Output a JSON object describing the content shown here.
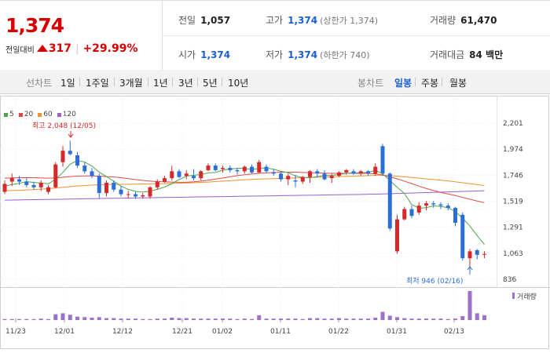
{
  "summary": {
    "current_price": "1,374",
    "diff_label": "전일대비",
    "diff_value": "317",
    "diff_rate": "+29.99%",
    "prev_close": {
      "label": "전일",
      "value": "1,057"
    },
    "high": {
      "label": "고가",
      "value": "1,374",
      "note": "(상한가 1,374)"
    },
    "volume": {
      "label": "거래량",
      "value": "61,470"
    },
    "open": {
      "label": "시가",
      "value": "1,374"
    },
    "low": {
      "label": "저가",
      "value": "1,374",
      "note": "(하한가 740)"
    },
    "amount": {
      "label": "거래대금",
      "value": "84 백만"
    }
  },
  "toolbar": {
    "line_label": "선차트",
    "periods": [
      "1일",
      "1주일",
      "3개월",
      "1년",
      "3년",
      "5년",
      "10년"
    ],
    "candle_label": "봉차트",
    "candle_types": [
      "일봉",
      "주봉",
      "월봉"
    ],
    "active_candle": "일봉"
  },
  "colors": {
    "up": "#d8272a",
    "down": "#2b6fd6",
    "ma5": "#4aa84a",
    "ma20": "#e04848",
    "ma60": "#f0922b",
    "ma120": "#9b5fd0",
    "volume": "#9b72c8",
    "accent_blue": "#1a5fd4"
  },
  "chart_data": {
    "type": "candlestick",
    "legend": [
      "5",
      "20",
      "60",
      "120"
    ],
    "y_ticks": [
      "2,201",
      "1,974",
      "1,746",
      "1,519",
      "1,291",
      "1,063",
      "836"
    ],
    "ylim": [
      836,
      2201
    ],
    "x_ticks": [
      "11/23",
      "12/01",
      "12/12",
      "12/21",
      "01/02",
      "01/11",
      "01/22",
      "01/31",
      "02/13"
    ],
    "max_annotation": "최고 2,048 (12/05)",
    "min_annotation": "최저 946 (02/16)",
    "volume_label": "거래량",
    "candles": [
      [
        1600,
        1700,
        1580,
        1670
      ],
      [
        1690,
        1760,
        1650,
        1720
      ],
      [
        1710,
        1740,
        1660,
        1690
      ],
      [
        1690,
        1720,
        1640,
        1660
      ],
      [
        1660,
        1690,
        1620,
        1640
      ],
      [
        1640,
        1700,
        1610,
        1680
      ],
      [
        1600,
        1660,
        1580,
        1640
      ],
      [
        1640,
        1860,
        1630,
        1840
      ],
      [
        1860,
        2000,
        1820,
        1960
      ],
      [
        1960,
        2048,
        1920,
        1930
      ],
      [
        1920,
        1950,
        1810,
        1830
      ],
      [
        1830,
        1860,
        1760,
        1780
      ],
      [
        1780,
        1810,
        1720,
        1740
      ],
      [
        1740,
        1760,
        1540,
        1590
      ],
      [
        1590,
        1700,
        1560,
        1680
      ],
      [
        1680,
        1700,
        1600,
        1620
      ],
      [
        1620,
        1650,
        1560,
        1580
      ],
      [
        1580,
        1610,
        1550,
        1580
      ],
      [
        1580,
        1600,
        1540,
        1560
      ],
      [
        1560,
        1590,
        1540,
        1570
      ],
      [
        1560,
        1650,
        1540,
        1640
      ],
      [
        1640,
        1710,
        1620,
        1690
      ],
      [
        1690,
        1740,
        1680,
        1720
      ],
      [
        1720,
        1830,
        1700,
        1780
      ],
      [
        1780,
        1800,
        1720,
        1730
      ],
      [
        1740,
        1790,
        1710,
        1760
      ],
      [
        1740,
        1800,
        1700,
        1720
      ],
      [
        1720,
        1790,
        1700,
        1780
      ],
      [
        1790,
        1850,
        1780,
        1830
      ],
      [
        1830,
        1850,
        1780,
        1790
      ],
      [
        1800,
        1830,
        1770,
        1810
      ],
      [
        1810,
        1830,
        1770,
        1790
      ],
      [
        1790,
        1810,
        1750,
        1780
      ],
      [
        1780,
        1830,
        1760,
        1820
      ],
      [
        1820,
        1840,
        1760,
        1770
      ],
      [
        1770,
        1880,
        1760,
        1860
      ],
      [
        1820,
        1840,
        1770,
        1780
      ],
      [
        1770,
        1800,
        1740,
        1760
      ],
      [
        1760,
        1780,
        1690,
        1710
      ],
      [
        1710,
        1760,
        1660,
        1740
      ],
      [
        1700,
        1750,
        1640,
        1690
      ],
      [
        1690,
        1740,
        1670,
        1730
      ],
      [
        1730,
        1790,
        1680,
        1780
      ],
      [
        1780,
        1800,
        1730,
        1760
      ],
      [
        1760,
        1790,
        1700,
        1710
      ],
      [
        1720,
        1760,
        1680,
        1740
      ],
      [
        1740,
        1780,
        1730,
        1770
      ],
      [
        1770,
        1800,
        1750,
        1790
      ],
      [
        1780,
        1800,
        1750,
        1760
      ],
      [
        1760,
        1790,
        1740,
        1780
      ],
      [
        1780,
        1790,
        1740,
        1760
      ],
      [
        1760,
        1850,
        1740,
        1820
      ],
      [
        2000,
        2020,
        1740,
        1760
      ],
      [
        1760,
        1770,
        1260,
        1280
      ],
      [
        1080,
        1400,
        1060,
        1360
      ],
      [
        1360,
        1470,
        1350,
        1450
      ],
      [
        1450,
        1480,
        1370,
        1390
      ],
      [
        1420,
        1510,
        1400,
        1480
      ],
      [
        1480,
        1520,
        1440,
        1500
      ],
      [
        1500,
        1520,
        1460,
        1490
      ],
      [
        1490,
        1510,
        1450,
        1480
      ],
      [
        1480,
        1500,
        1440,
        1460
      ],
      [
        1460,
        1470,
        1300,
        1330
      ],
      [
        1400,
        1420,
        1000,
        1020
      ],
      [
        1020,
        1100,
        946,
        1080
      ],
      [
        1090,
        1100,
        1010,
        1050
      ],
      [
        1050,
        1080,
        1020,
        1057
      ]
    ],
    "ma5": [
      1650,
      1665,
      1675,
      1690,
      1682,
      1678,
      1670,
      1710,
      1770,
      1842,
      1874,
      1862,
      1826,
      1772,
      1734,
      1694,
      1650,
      1622,
      1604,
      1598,
      1606,
      1622,
      1642,
      1672,
      1708,
      1738,
      1746,
      1752,
      1766,
      1770,
      1790,
      1800,
      1806,
      1806,
      1796,
      1806,
      1810,
      1798,
      1780,
      1768,
      1740,
      1726,
      1724,
      1734,
      1744,
      1744,
      1752,
      1762,
      1766,
      1768,
      1770,
      1788,
      1758,
      1700,
      1640,
      1586,
      1488,
      1458,
      1462,
      1478,
      1472,
      1462,
      1428,
      1370,
      1302,
      1218,
      1140
    ],
    "ma20": [
      1720,
      1722,
      1724,
      1725,
      1724,
      1722,
      1720,
      1722,
      1728,
      1734,
      1738,
      1740,
      1740,
      1738,
      1734,
      1730,
      1724,
      1716,
      1708,
      1700,
      1694,
      1690,
      1688,
      1686,
      1684,
      1684,
      1688,
      1694,
      1702,
      1712,
      1722,
      1732,
      1742,
      1750,
      1756,
      1762,
      1766,
      1770,
      1772,
      1772,
      1772,
      1770,
      1768,
      1766,
      1764,
      1762,
      1762,
      1762,
      1762,
      1762,
      1762,
      1758,
      1748,
      1732,
      1714,
      1694,
      1672,
      1650,
      1630,
      1612,
      1596,
      1582,
      1568,
      1552,
      1536,
      1520,
      1506
    ],
    "ma60": [
      1610,
      1612,
      1614,
      1617,
      1620,
      1624,
      1628,
      1634,
      1640,
      1646,
      1652,
      1656,
      1660,
      1662,
      1664,
      1665,
      1666,
      1667,
      1668,
      1669,
      1670,
      1671,
      1672,
      1674,
      1676,
      1678,
      1680,
      1683,
      1686,
      1690,
      1694,
      1698,
      1702,
      1706,
      1709,
      1712,
      1714,
      1716,
      1718,
      1720,
      1722,
      1724,
      1726,
      1728,
      1730,
      1732,
      1734,
      1736,
      1738,
      1740,
      1742,
      1744,
      1744,
      1742,
      1738,
      1732,
      1726,
      1720,
      1714,
      1708,
      1702,
      1696,
      1688,
      1680,
      1672,
      1664,
      1656
    ],
    "ma120": [
      1528,
      1529,
      1530,
      1531,
      1532,
      1533,
      1534,
      1535,
      1536,
      1537,
      1538,
      1540,
      1541,
      1542,
      1543,
      1544,
      1545,
      1546,
      1547,
      1548,
      1549,
      1550,
      1551,
      1552,
      1553,
      1554,
      1555,
      1556,
      1557,
      1558,
      1559,
      1560,
      1561,
      1562,
      1563,
      1564,
      1565,
      1566,
      1567,
      1568,
      1569,
      1570,
      1571,
      1572,
      1573,
      1574,
      1575,
      1576,
      1577,
      1578,
      1579,
      1580,
      1582,
      1584,
      1586,
      1588,
      1590,
      1592,
      1594,
      1596,
      1598,
      1600,
      1602,
      1604,
      1606,
      1608,
      1610
    ],
    "volume": [
      2,
      2,
      2,
      2,
      2,
      3,
      2,
      12,
      14,
      11,
      7,
      6,
      5,
      6,
      4,
      4,
      3,
      3,
      3,
      2,
      2,
      3,
      3,
      5,
      4,
      4,
      3,
      3,
      3,
      3,
      3,
      3,
      2,
      3,
      2,
      10,
      3,
      3,
      3,
      3,
      3,
      2,
      4,
      4,
      3,
      3,
      4,
      3,
      3,
      3,
      3,
      5,
      17,
      9,
      6,
      4,
      3,
      3,
      3,
      3,
      3,
      2,
      3,
      8,
      60,
      14,
      10
    ]
  }
}
